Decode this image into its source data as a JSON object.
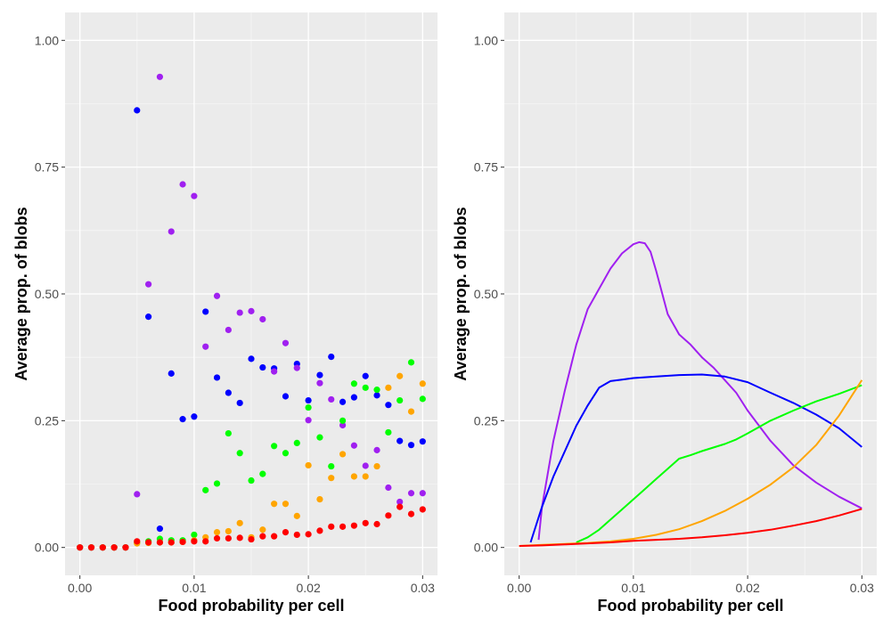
{
  "chart_data": [
    {
      "type": "scatter",
      "xlabel": "Food probability per cell",
      "ylabel": "Average prop. of blobs",
      "xlim": [
        -0.0013,
        0.0313
      ],
      "ylim": [
        -0.055,
        1.055
      ],
      "x_ticks": [
        0.0,
        0.01,
        0.02,
        0.03
      ],
      "x_tick_labels": [
        "0.00",
        "0.01",
        "0.02",
        "0.03"
      ],
      "y_ticks": [
        0.0,
        0.25,
        0.5,
        0.75,
        1.0
      ],
      "y_tick_labels": [
        "0.00",
        "0.25",
        "0.50",
        "0.75",
        "1.00"
      ],
      "grid": true,
      "legend": "none",
      "x": [
        0.0,
        0.001,
        0.002,
        0.003,
        0.004,
        0.005,
        0.006,
        0.007,
        0.008,
        0.009,
        0.01,
        0.011,
        0.012,
        0.013,
        0.014,
        0.015,
        0.016,
        0.017,
        0.018,
        0.019,
        0.02,
        0.021,
        0.022,
        0.023,
        0.024,
        0.025,
        0.026,
        0.027,
        0.028,
        0.029,
        0.03
      ],
      "series": [
        {
          "color": "#0000FF",
          "values": [
            0,
            0,
            0,
            0,
            0,
            0.862,
            0.455,
            0.037,
            0.343,
            0.253,
            0.258,
            0.465,
            0.335,
            0.305,
            0.285,
            0.372,
            0.355,
            0.353,
            0.298,
            0.362,
            0.29,
            0.34,
            0.376,
            0.287,
            0.296,
            0.338,
            0.3,
            0.281,
            0.21,
            0.202,
            0.209
          ]
        },
        {
          "color": "#A020F0",
          "values": [
            0,
            0,
            0,
            0,
            0,
            0.105,
            0.519,
            0.928,
            0.623,
            0.716,
            0.693,
            0.396,
            0.496,
            0.429,
            0.463,
            0.466,
            0.45,
            0.347,
            0.403,
            0.354,
            0.251,
            0.324,
            0.292,
            0.241,
            0.201,
            0.161,
            0.192,
            0.118,
            0.09,
            0.107,
            0.107
          ]
        },
        {
          "color": "#00FF00",
          "values": [
            0,
            0,
            0,
            0,
            0,
            0.01,
            0.012,
            0.017,
            0.014,
            0.014,
            0.025,
            0.113,
            0.126,
            0.225,
            0.186,
            0.132,
            0.145,
            0.2,
            0.186,
            0.206,
            0.276,
            0.217,
            0.16,
            0.25,
            0.323,
            0.315,
            0.311,
            0.227,
            0.29,
            0.365,
            0.293
          ]
        },
        {
          "color": "#FFA500",
          "values": [
            0,
            0,
            0,
            0,
            0,
            0.008,
            0.009,
            0.01,
            0.01,
            0.011,
            0.014,
            0.02,
            0.03,
            0.032,
            0.048,
            0.02,
            0.035,
            0.086,
            0.086,
            0.062,
            0.162,
            0.095,
            0.137,
            0.184,
            0.14,
            0.14,
            0.16,
            0.315,
            0.338,
            0.268,
            0.323
          ]
        },
        {
          "color": "#FF0000",
          "values": [
            0,
            0,
            0,
            0,
            0,
            0.012,
            0.01,
            0.01,
            0.01,
            0.011,
            0.012,
            0.012,
            0.018,
            0.018,
            0.019,
            0.016,
            0.022,
            0.022,
            0.03,
            0.025,
            0.026,
            0.033,
            0.041,
            0.041,
            0.043,
            0.048,
            0.046,
            0.063,
            0.08,
            0.066,
            0.075
          ]
        }
      ]
    },
    {
      "type": "line",
      "xlabel": "Food probability per cell",
      "ylabel": "Average prop. of blobs",
      "xlim": [
        -0.0013,
        0.0313
      ],
      "ylim": [
        -0.055,
        1.055
      ],
      "x_ticks": [
        0.0,
        0.01,
        0.02,
        0.03
      ],
      "x_tick_labels": [
        "0.00",
        "0.01",
        "0.02",
        "0.03"
      ],
      "y_ticks": [
        0.0,
        0.25,
        0.5,
        0.75,
        1.0
      ],
      "y_tick_labels": [
        "0.00",
        "0.25",
        "0.50",
        "0.75",
        "1.00"
      ],
      "grid": true,
      "legend": "none",
      "series": [
        {
          "color": "#A020F0",
          "x": [
            0.0017,
            0.002,
            0.003,
            0.004,
            0.005,
            0.006,
            0.007,
            0.008,
            0.009,
            0.01,
            0.0105,
            0.011,
            0.0115,
            0.012,
            0.013,
            0.014,
            0.015,
            0.016,
            0.017,
            0.018,
            0.019,
            0.02,
            0.022,
            0.024,
            0.026,
            0.028,
            0.03
          ],
          "y": [
            0.015,
            0.08,
            0.21,
            0.31,
            0.4,
            0.47,
            0.51,
            0.55,
            0.58,
            0.598,
            0.602,
            0.6,
            0.583,
            0.545,
            0.46,
            0.42,
            0.4,
            0.375,
            0.355,
            0.33,
            0.305,
            0.27,
            0.21,
            0.162,
            0.128,
            0.1,
            0.077
          ]
        },
        {
          "color": "#0000FF",
          "x": [
            0.001,
            0.002,
            0.003,
            0.004,
            0.005,
            0.006,
            0.007,
            0.008,
            0.009,
            0.01,
            0.012,
            0.014,
            0.016,
            0.018,
            0.02,
            0.022,
            0.024,
            0.026,
            0.028,
            0.03
          ],
          "y": [
            0.01,
            0.08,
            0.14,
            0.19,
            0.24,
            0.28,
            0.315,
            0.328,
            0.331,
            0.334,
            0.337,
            0.34,
            0.341,
            0.337,
            0.326,
            0.305,
            0.285,
            0.262,
            0.235,
            0.198
          ]
        },
        {
          "color": "#00FF00",
          "x": [
            0.005,
            0.006,
            0.007,
            0.008,
            0.009,
            0.01,
            0.011,
            0.012,
            0.013,
            0.014,
            0.015,
            0.016,
            0.017,
            0.018,
            0.019,
            0.02,
            0.022,
            0.024,
            0.026,
            0.028,
            0.03
          ],
          "y": [
            0.01,
            0.02,
            0.035,
            0.055,
            0.075,
            0.095,
            0.115,
            0.135,
            0.155,
            0.175,
            0.182,
            0.19,
            0.197,
            0.204,
            0.213,
            0.225,
            0.25,
            0.27,
            0.288,
            0.303,
            0.32
          ]
        },
        {
          "color": "#FFA500",
          "x": [
            0.0,
            0.002,
            0.004,
            0.006,
            0.008,
            0.01,
            0.012,
            0.014,
            0.016,
            0.018,
            0.02,
            0.022,
            0.024,
            0.026,
            0.028,
            0.03
          ],
          "y": [
            0.003,
            0.005,
            0.007,
            0.009,
            0.012,
            0.017,
            0.025,
            0.036,
            0.052,
            0.072,
            0.096,
            0.124,
            0.158,
            0.202,
            0.26,
            0.33
          ]
        },
        {
          "color": "#FF0000",
          "x": [
            0.0,
            0.002,
            0.004,
            0.006,
            0.008,
            0.01,
            0.012,
            0.014,
            0.016,
            0.018,
            0.02,
            0.022,
            0.024,
            0.026,
            0.028,
            0.03
          ],
          "y": [
            0.003,
            0.004,
            0.006,
            0.008,
            0.01,
            0.013,
            0.015,
            0.017,
            0.02,
            0.024,
            0.029,
            0.035,
            0.043,
            0.052,
            0.063,
            0.076
          ]
        }
      ]
    }
  ]
}
